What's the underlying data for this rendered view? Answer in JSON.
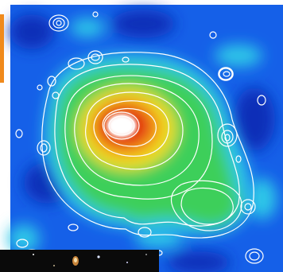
{
  "image": {
    "subject": "x-ray-heatmap-with-contours",
    "colors": {
      "background_blue": "#1560e8",
      "deep_blue": "#0a2fb8",
      "cyan": "#2fc8e8",
      "green": "#3ccf5a",
      "yellow": "#f0e01e",
      "orange": "#f2891a",
      "red": "#e01a10",
      "core_white": "#ffffff",
      "contour_white": "#ffffff",
      "strip_black": "#0a0a0a",
      "left_strip_orange": "#f08a1c"
    }
  }
}
